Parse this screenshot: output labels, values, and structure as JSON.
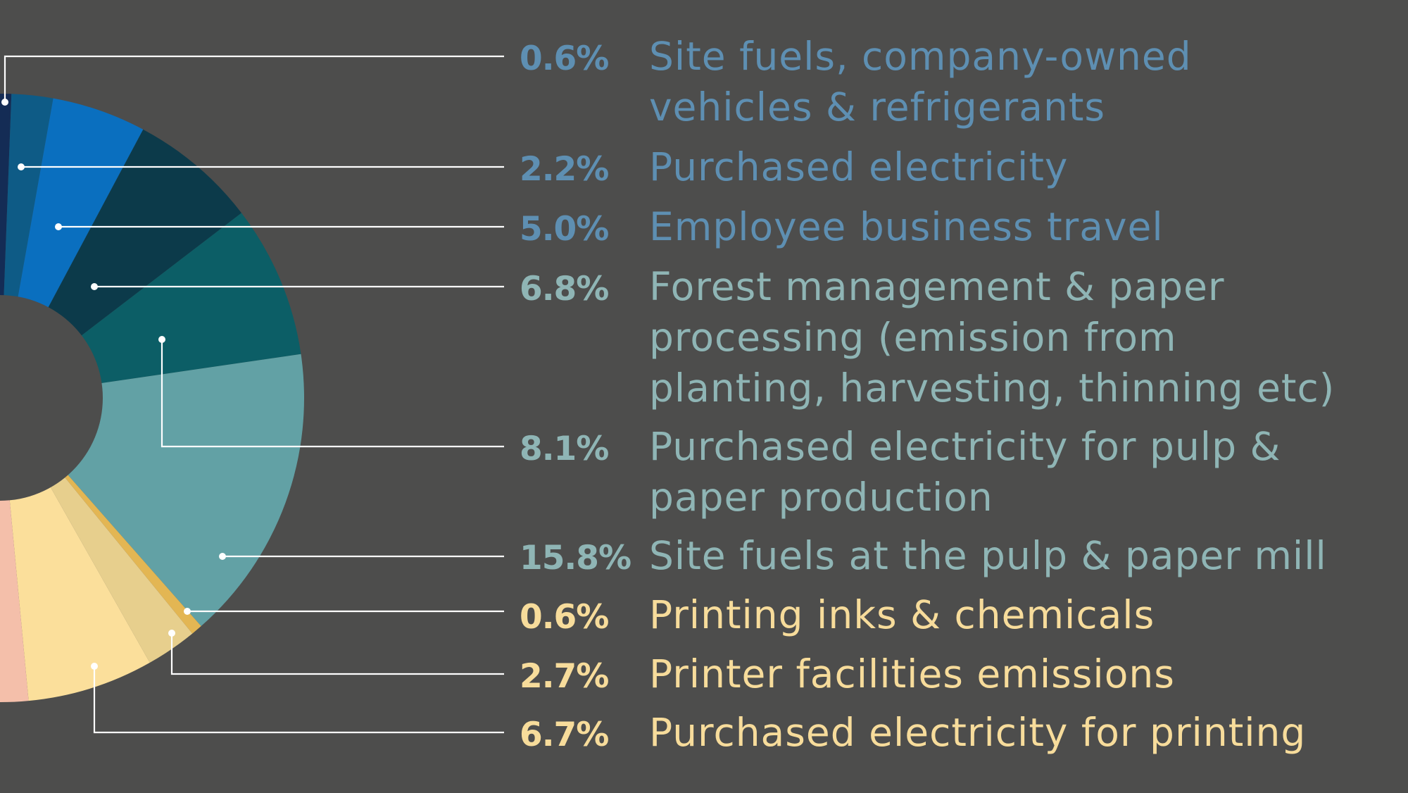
{
  "chart_data": {
    "type": "donut",
    "title": "",
    "unit": "%",
    "slices": [
      {
        "value": 0.6,
        "value_label": "0.6%",
        "label": [
          "Site fuels, company-owned",
          "vehicles & refrigerants"
        ],
        "color": "#142c55",
        "text_color": "#5e8fb2"
      },
      {
        "value": 2.2,
        "value_label": "2.2%",
        "label": [
          "Purchased electricity"
        ],
        "color": "#0e5b86",
        "text_color": "#5e8fb2"
      },
      {
        "value": 5.0,
        "value_label": "5.0%",
        "label": [
          "Employee business travel"
        ],
        "color": "#0a6fbf",
        "text_color": "#5e8fb2"
      },
      {
        "value": 6.8,
        "value_label": "6.8%",
        "label": [
          "Forest management & paper",
          "processing (emission from",
          "planting, harvesting, thinning etc)"
        ],
        "color": "#0c3a4a",
        "text_color": "#8fb5b5"
      },
      {
        "value": 8.1,
        "value_label": "8.1%",
        "label": [
          "Purchased electricity for pulp &",
          "paper production"
        ],
        "color": "#0c5e66",
        "text_color": "#8fb5b5"
      },
      {
        "value": 15.8,
        "value_label": "15.8%",
        "label": [
          "Site fuels at the pulp & paper mill"
        ],
        "color": "#62a1a5",
        "text_color": "#8fb5b5"
      },
      {
        "value": 0.6,
        "value_label": "0.6%",
        "label": [
          "Printing inks & chemicals"
        ],
        "color": "#e3b653",
        "text_color": "#f7dc9b"
      },
      {
        "value": 2.7,
        "value_label": "2.7%",
        "label": [
          "Printer facilities emissions"
        ],
        "color": "#e7cf8d",
        "text_color": "#f7dc9b"
      },
      {
        "value": 6.7,
        "value_label": "6.7%",
        "label": [
          "Purchased electricity for printing"
        ],
        "color": "#fbdf9b",
        "text_color": "#f7dc9b"
      }
    ],
    "partial_slice_color": "#f4bfaa"
  }
}
